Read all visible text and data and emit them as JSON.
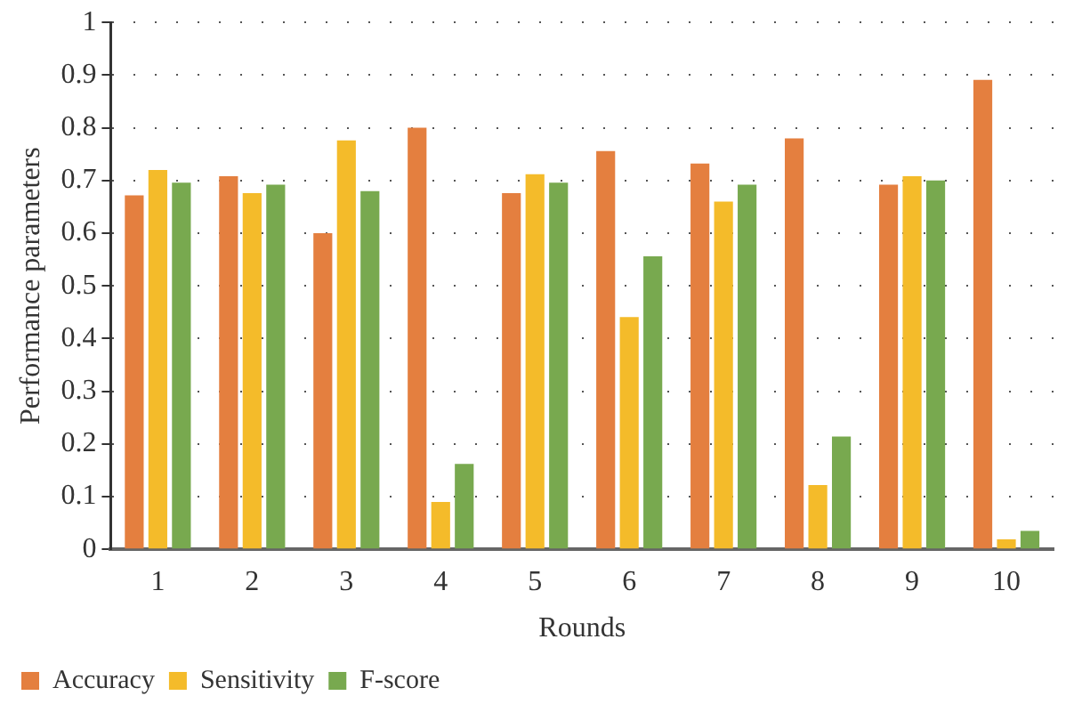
{
  "chart_data": {
    "type": "bar",
    "xlabel": "Rounds",
    "ylabel": "Performance parameters",
    "categories": [
      "1",
      "2",
      "3",
      "4",
      "5",
      "6",
      "7",
      "8",
      "9",
      "10"
    ],
    "series": [
      {
        "name": "Accuracy",
        "color": "#e47f3f",
        "values": [
          0.672,
          0.708,
          0.6,
          0.8,
          0.676,
          0.756,
          0.732,
          0.78,
          0.692,
          0.891
        ]
      },
      {
        "name": "Sensitivity",
        "color": "#f4bb2a",
        "values": [
          0.72,
          0.676,
          0.776,
          0.09,
          0.712,
          0.441,
          0.66,
          0.122,
          0.708,
          0.019
        ]
      },
      {
        "name": "F-score",
        "color": "#78a94f",
        "values": [
          0.696,
          0.692,
          0.68,
          0.162,
          0.696,
          0.556,
          0.692,
          0.214,
          0.7,
          0.035
        ]
      }
    ],
    "ylim": [
      0,
      1
    ],
    "yticks": [
      0,
      0.1,
      0.2,
      0.3,
      0.4,
      0.5,
      0.6,
      0.7,
      0.8,
      0.9,
      1
    ],
    "grid": "y",
    "legend": "bottom"
  }
}
